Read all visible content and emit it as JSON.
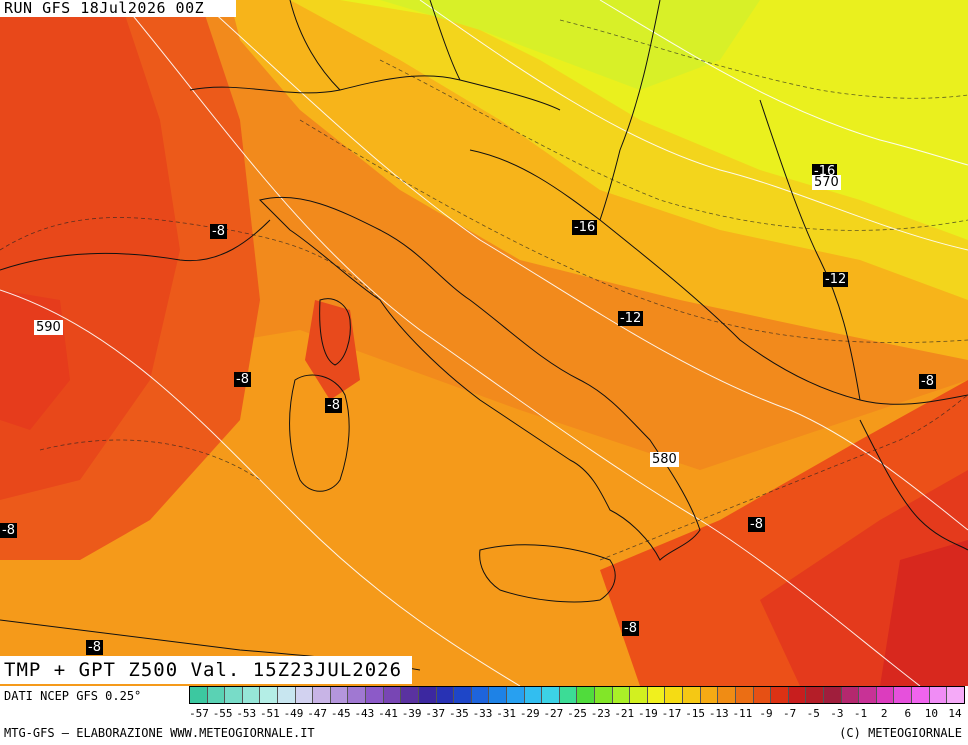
{
  "header": {
    "run_label": "RUN GFS 18Jul2026 00Z"
  },
  "title": {
    "field_label": "TMP + GPT Z500 Val. 15Z23JUL2026"
  },
  "labels": {
    "temperature": [
      "-8",
      "-8",
      "-8",
      "-8",
      "-8",
      "-8",
      "-8",
      "-8",
      "-8",
      "-12",
      "-12",
      "-16",
      "-16"
    ],
    "geopotential": [
      "590",
      "580",
      "570"
    ]
  },
  "legend": {
    "data_source": "DATI NCEP GFS 0.25°",
    "tick_labels": [
      "-57",
      "-55",
      "-53",
      "-51",
      "-49",
      "-47",
      "-45",
      "-43",
      "-41",
      "-39",
      "-37",
      "-35",
      "-33",
      "-31",
      "-29",
      "-27",
      "-25",
      "-23",
      "-21",
      "-19",
      "-17",
      "-15",
      "-13",
      "-11",
      "-9",
      "-7",
      "-5",
      "-3",
      "-1",
      "2",
      "6",
      "10",
      "14"
    ],
    "colors": [
      "#3cc8a0",
      "#5ad2b4",
      "#78dcc8",
      "#96e6d8",
      "#b4eee6",
      "#c8e6f0",
      "#d2d2f0",
      "#c8b4e6",
      "#b496dc",
      "#a078d2",
      "#8c5ac8",
      "#7846b4",
      "#5a32a0",
      "#3c28a0",
      "#2832b4",
      "#1e46c8",
      "#1e64dc",
      "#1e82e6",
      "#28a0f0",
      "#32bef0",
      "#3cd2e6",
      "#3cdc96",
      "#50dc3c",
      "#82e628",
      "#aaf028",
      "#d2f020",
      "#f0f01e",
      "#f5dc14",
      "#f5c814",
      "#f5aa14",
      "#f08c14",
      "#eb6e14",
      "#e65014",
      "#dc3214",
      "#c81e1e",
      "#b41e28",
      "#a01e3c",
      "#b4286e",
      "#c83296",
      "#dc3cbe",
      "#e650dc",
      "#f064ee",
      "#f08cf5",
      "#f5aaf8"
    ]
  },
  "footer": {
    "left": "MTG-GFS — ELABORAZIONE WWW.METEOGIORNALE.IT",
    "right": "(C) METEOGIORNALE"
  }
}
